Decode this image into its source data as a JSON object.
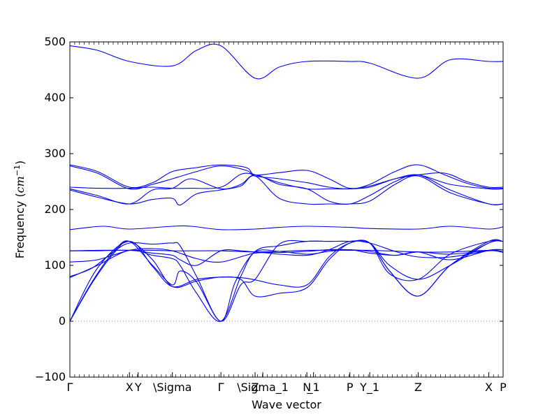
{
  "chart_data": {
    "type": "line",
    "title": "",
    "xlabel": "Wave vector",
    "ylabel_main": "Frequency (",
    "ylabel_unit": "cm",
    "ylabel_exp": "−1",
    "ylabel_close": ")",
    "ylim": [
      -100,
      500
    ],
    "yticks": [
      -100,
      0,
      100,
      200,
      300,
      400,
      500
    ],
    "xlim": [
      0,
      3.93
    ],
    "grid": false,
    "line_color": "#0000ff",
    "zero_line_color": "#7f7fbf",
    "xticks": [
      {
        "x": 0.0,
        "label": "Γ"
      },
      {
        "x": 0.54,
        "label": "X"
      },
      {
        "x": 0.62,
        "label": "Y"
      },
      {
        "x": 0.93,
        "label": "\\Sigma"
      },
      {
        "x": 1.37,
        "label": "Γ"
      },
      {
        "x": 1.68,
        "label": "Z"
      },
      {
        "x": 1.75,
        "label": "\\Sigma_1"
      },
      {
        "x": 2.15,
        "label": "N"
      },
      {
        "x": 2.21,
        "label": "_1"
      },
      {
        "x": 2.54,
        "label": "P"
      },
      {
        "x": 2.72,
        "label": "Y_1"
      },
      {
        "x": 3.16,
        "label": "Z"
      },
      {
        "x": 3.8,
        "label": "X"
      },
      {
        "x": 3.93,
        "label": "P"
      }
    ],
    "series": [
      {
        "x": [
          0,
          0.25,
          0.54,
          0.93,
          1.15,
          1.37,
          1.68,
          1.9,
          2.15,
          2.54,
          2.72,
          3.16,
          3.45,
          3.8,
          3.93
        ],
        "y": [
          493,
          485,
          465,
          457,
          485,
          493,
          435,
          455,
          465,
          465,
          462,
          435,
          468,
          465,
          465
        ]
      },
      {
        "x": [
          0,
          0.25,
          0.54,
          0.75,
          0.93,
          1.15,
          1.37,
          1.6,
          1.68,
          1.9,
          2.15,
          2.35,
          2.54,
          2.72,
          2.95,
          3.16,
          3.4,
          3.6,
          3.8,
          3.93
        ],
        "y": [
          280,
          268,
          240,
          248,
          268,
          275,
          280,
          275,
          262,
          266,
          270,
          255,
          238,
          245,
          268,
          280,
          262,
          247,
          238,
          238
        ]
      },
      {
        "x": [
          0,
          0.25,
          0.54,
          0.75,
          0.93,
          1.15,
          1.37,
          1.6,
          1.68,
          1.9,
          2.15,
          2.35,
          2.54,
          2.72,
          2.95,
          3.16,
          3.4,
          3.6,
          3.8,
          3.93
        ],
        "y": [
          278,
          265,
          237,
          245,
          255,
          268,
          278,
          270,
          260,
          255,
          248,
          240,
          237,
          242,
          255,
          262,
          265,
          250,
          240,
          240
        ]
      },
      {
        "x": [
          0,
          0.25,
          0.54,
          0.75,
          0.93,
          1.1,
          1.37,
          1.55,
          1.68,
          1.9,
          2.15,
          2.35,
          2.54,
          2.72,
          2.95,
          3.16,
          3.45,
          3.8,
          3.93
        ],
        "y": [
          240,
          238,
          238,
          240,
          238,
          238,
          240,
          263,
          262,
          248,
          237,
          237,
          237,
          240,
          255,
          262,
          245,
          237,
          237
        ]
      },
      {
        "x": [
          0,
          0.25,
          0.54,
          0.75,
          0.93,
          1.1,
          1.37,
          1.55,
          1.68,
          1.9,
          2.15,
          2.35,
          2.54,
          2.72,
          2.95,
          3.16,
          3.45,
          3.8,
          3.93
        ],
        "y": [
          237,
          225,
          210,
          235,
          238,
          255,
          237,
          245,
          262,
          245,
          237,
          215,
          210,
          225,
          250,
          262,
          235,
          210,
          210
        ]
      },
      {
        "x": [
          0,
          0.25,
          0.54,
          0.75,
          0.93,
          1.0,
          1.15,
          1.37,
          1.55,
          1.68,
          1.9,
          2.15,
          2.35,
          2.54,
          2.72,
          2.95,
          3.16,
          3.45,
          3.8,
          3.93
        ],
        "y": [
          235,
          222,
          210,
          218,
          220,
          208,
          228,
          235,
          242,
          260,
          220,
          210,
          210,
          210,
          215,
          245,
          260,
          230,
          210,
          210
        ]
      },
      {
        "x": [
          0,
          0.3,
          0.54,
          0.93,
          1.1,
          1.37,
          1.68,
          1.9,
          2.15,
          2.54,
          2.72,
          3.16,
          3.45,
          3.8,
          3.93
        ],
        "y": [
          164,
          170,
          165,
          170,
          170,
          164,
          165,
          168,
          170,
          168,
          166,
          165,
          170,
          165,
          169
        ]
      },
      {
        "x": [
          0,
          0.25,
          0.54,
          0.75,
          0.93,
          1.15,
          1.37,
          1.68,
          1.9,
          2.15,
          2.54,
          2.72,
          3.16,
          3.45,
          3.8,
          3.93
        ],
        "y": [
          126,
          127,
          127,
          127,
          126,
          126,
          126,
          124,
          125,
          127,
          127,
          127,
          124,
          124,
          127,
          125
        ]
      },
      {
        "x": [
          0,
          0.25,
          0.54,
          0.75,
          0.93,
          1.15,
          1.37,
          1.68,
          1.9,
          2.15,
          2.35,
          2.54,
          2.72,
          2.95,
          3.16,
          3.45,
          3.8,
          3.93
        ],
        "y": [
          106,
          110,
          127,
          130,
          126,
          112,
          106,
          122,
          120,
          118,
          128,
          143,
          140,
          125,
          115,
          115,
          126,
          123
        ]
      },
      {
        "x": [
          0,
          0.25,
          0.54,
          0.75,
          0.93,
          1.0,
          1.15,
          1.37,
          1.55,
          1.68,
          1.9,
          2.15,
          2.35,
          2.54,
          2.72,
          2.95,
          3.16,
          3.45,
          3.8,
          3.93
        ],
        "y": [
          126,
          126,
          127,
          122,
          118,
          110,
          100,
          126,
          126,
          124,
          123,
          125,
          128,
          128,
          125,
          118,
          124,
          110,
          127,
          128
        ]
      },
      {
        "x": [
          0,
          0.25,
          0.54,
          0.75,
          0.93,
          1.0,
          1.15,
          1.37,
          1.55,
          1.68,
          1.9,
          2.15,
          2.35,
          2.54,
          2.72,
          2.95,
          3.16,
          3.45,
          3.8,
          3.93
        ],
        "y": [
          78,
          100,
          127,
          118,
          112,
          100,
          50,
          0,
          80,
          124,
          125,
          120,
          125,
          128,
          122,
          118,
          124,
          120,
          127,
          128
        ]
      },
      {
        "x": [
          0,
          0.2,
          0.4,
          0.54,
          0.75,
          0.93,
          1.0,
          1.15,
          1.37,
          1.55,
          1.68,
          1.9,
          2.15,
          2.35,
          2.54,
          2.72,
          2.9,
          3.16,
          3.45,
          3.8,
          3.93
        ],
        "y": [
          80,
          95,
          125,
          140,
          138,
          140,
          135,
          80,
          0,
          65,
          75,
          138,
          143,
          143,
          143,
          140,
          85,
          75,
          120,
          143,
          143
        ]
      },
      {
        "x": [
          0,
          0.2,
          0.4,
          0.54,
          0.75,
          0.93,
          1.0,
          1.15,
          1.37,
          1.5,
          1.68,
          1.9,
          2.15,
          2.35,
          2.54,
          2.72,
          2.9,
          3.16,
          3.45,
          3.8,
          3.93
        ],
        "y": [
          0,
          70,
          125,
          143,
          100,
          65,
          90,
          70,
          0,
          70,
          125,
          135,
          143,
          143,
          143,
          140,
          90,
          45,
          100,
          143,
          143
        ]
      },
      {
        "x": [
          0,
          0.2,
          0.4,
          0.54,
          0.75,
          0.93,
          1.15,
          1.37,
          1.55,
          1.68,
          1.9,
          2.15,
          2.35,
          2.54,
          2.72,
          2.9,
          3.16,
          3.45,
          3.8,
          3.93
        ],
        "y": [
          0,
          68,
          122,
          143,
          110,
          62,
          72,
          79,
          75,
          45,
          50,
          60,
          110,
          140,
          140,
          90,
          45,
          100,
          140,
          143
        ]
      },
      {
        "x": [
          0,
          0.25,
          0.54,
          0.75,
          0.93,
          1.15,
          1.37,
          1.55,
          1.68,
          1.9,
          2.15,
          2.35,
          2.54,
          2.72,
          2.9,
          3.16,
          3.45,
          3.8,
          3.93
        ],
        "y": [
          0,
          95,
          143,
          98,
          62,
          75,
          79,
          78,
          74,
          65,
          65,
          115,
          140,
          140,
          100,
          75,
          100,
          140,
          143
        ]
      }
    ]
  }
}
